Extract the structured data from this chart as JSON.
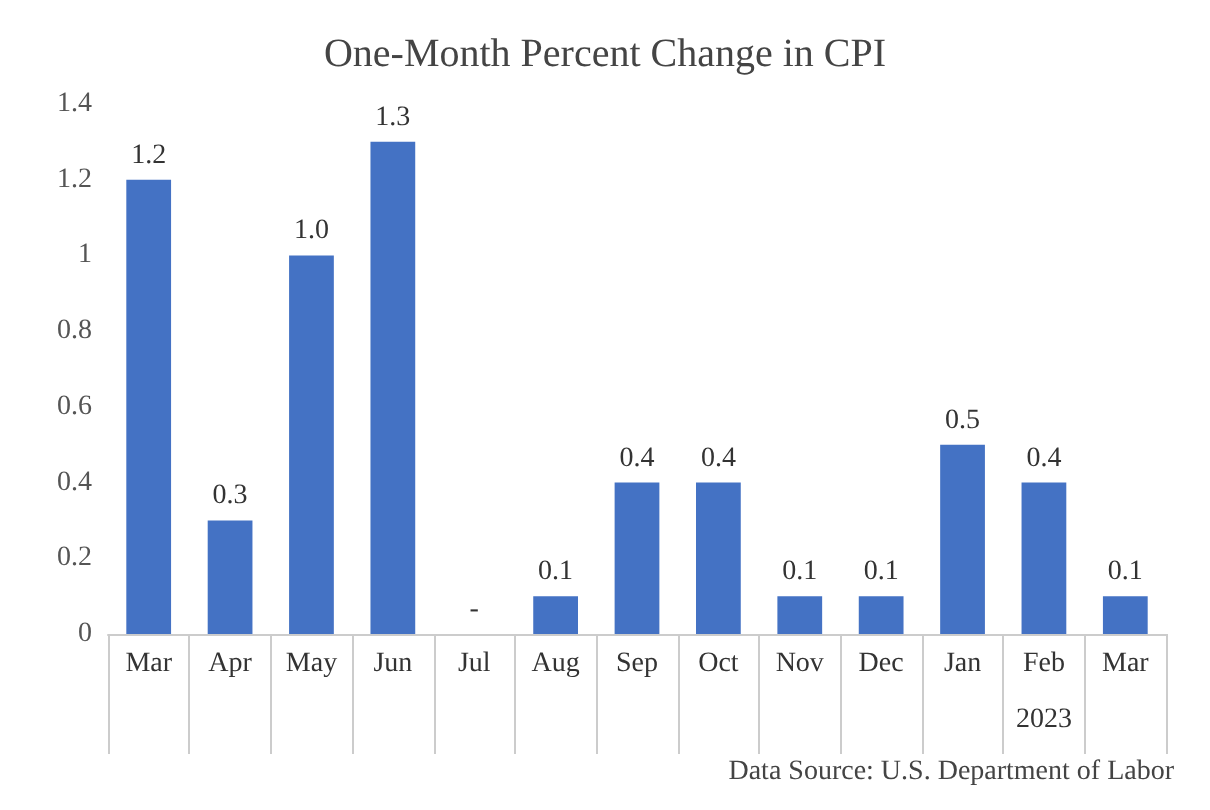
{
  "chart_data": {
    "type": "bar",
    "title": "One-Month Percent Change in CPI",
    "categories": [
      "Mar",
      "Apr",
      "May",
      "Jun",
      "Jul",
      "Aug",
      "Sep",
      "Oct",
      "Nov",
      "Dec",
      "Jan",
      "Feb",
      "Mar"
    ],
    "values": [
      1.2,
      0.3,
      1.0,
      1.3,
      0,
      0.1,
      0.4,
      0.4,
      0.1,
      0.1,
      0.5,
      0.4,
      0.1
    ],
    "value_labels": [
      "1.2",
      "0.3",
      "1.0",
      "1.3",
      "-",
      "0.1",
      "0.4",
      "0.4",
      "0.1",
      "0.1",
      "0.5",
      "0.4",
      "0.1"
    ],
    "color": "#4472c4",
    "ylim": [
      0,
      1.4
    ],
    "yticks": [
      0,
      0.2,
      0.4,
      0.6,
      0.8,
      1,
      1.2,
      1.4
    ],
    "grid": false,
    "annotations": [
      "2023",
      "Data Source: U.S. Department of Labor"
    ]
  }
}
